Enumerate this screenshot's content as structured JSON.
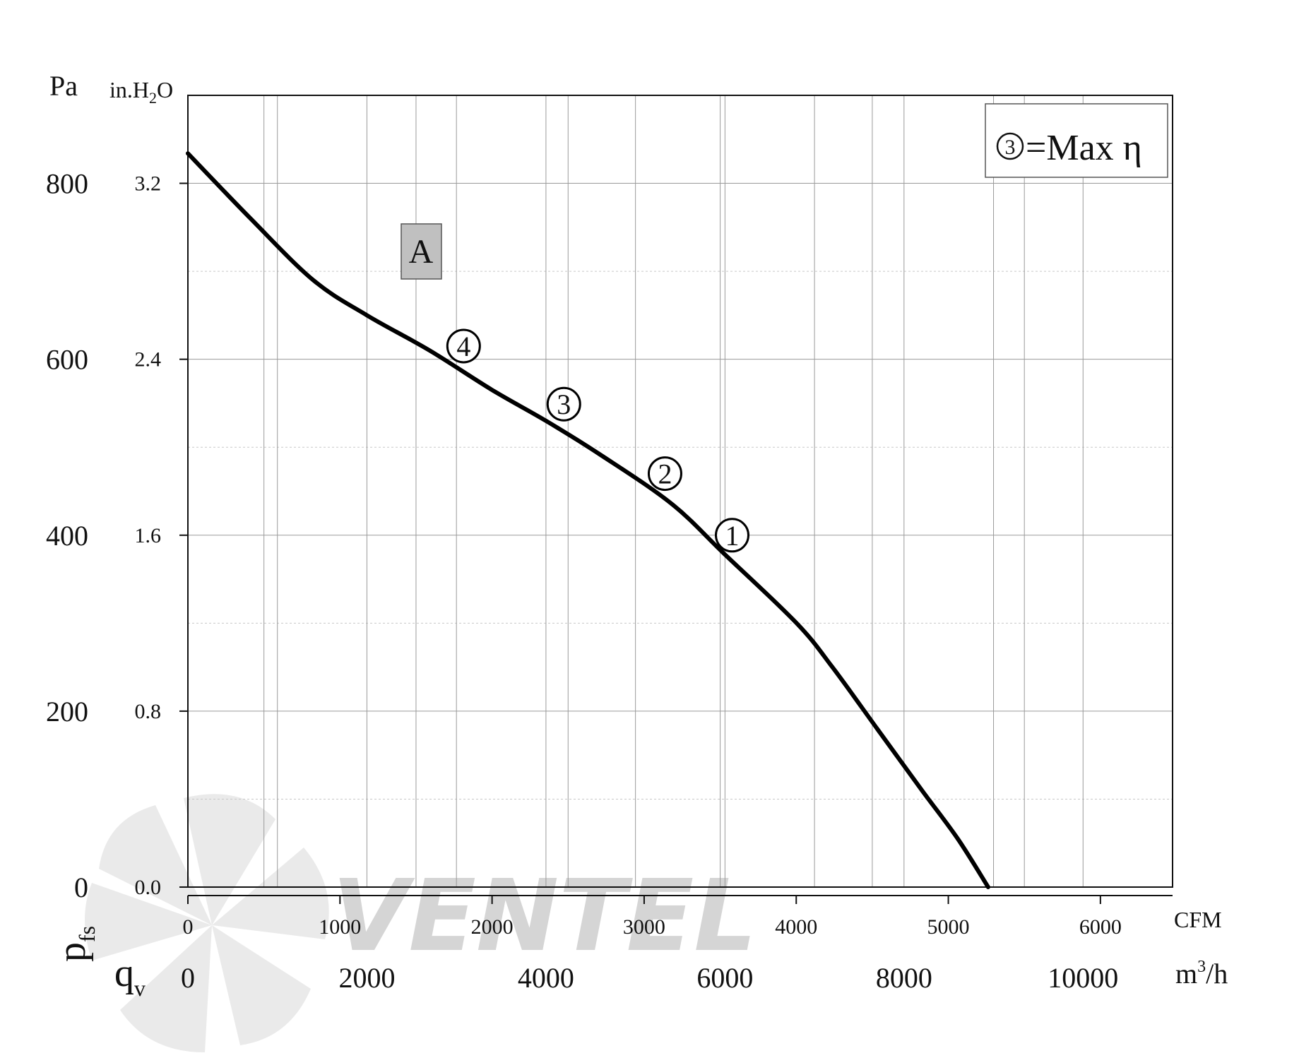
{
  "chart_data": {
    "type": "line",
    "y_units": {
      "left": "Pa",
      "right": "in.H2O"
    },
    "y_symbol": "p",
    "y_symbol_sub": "fs",
    "x_symbol": "q",
    "x_symbol_sub": "v",
    "x_units": {
      "primary": "m3/h",
      "secondary": "CFM"
    },
    "xlim": [
      0,
      11000
    ],
    "ylim": [
      0,
      900
    ],
    "x_ticks_m3h": [
      {
        "value": 0,
        "label": "0"
      },
      {
        "value": 2000,
        "label": "2000"
      },
      {
        "value": 4000,
        "label": "4000"
      },
      {
        "value": 6000,
        "label": "6000"
      },
      {
        "value": 8000,
        "label": "8000"
      },
      {
        "value": 10000,
        "label": "10000"
      }
    ],
    "x_ticks_cfm": [
      {
        "value": 0,
        "label": "0"
      },
      {
        "value": 1000,
        "label": "1000"
      },
      {
        "value": 2000,
        "label": "2000"
      },
      {
        "value": 3000,
        "label": "3000"
      },
      {
        "value": 4000,
        "label": "4000"
      },
      {
        "value": 5000,
        "label": "5000"
      },
      {
        "value": 6000,
        "label": "6000"
      }
    ],
    "y_ticks_pa": [
      {
        "value": 0,
        "label": "0"
      },
      {
        "value": 200,
        "label": "200"
      },
      {
        "value": 400,
        "label": "400"
      },
      {
        "value": 600,
        "label": "600"
      },
      {
        "value": 800,
        "label": "800"
      }
    ],
    "y_ticks_inh2o": [
      {
        "value": 0,
        "label": "0.0"
      },
      {
        "value": 0.8,
        "label": "0.8"
      },
      {
        "value": 1.6,
        "label": "1.6"
      },
      {
        "value": 2.4,
        "label": "2.4"
      },
      {
        "value": 3.2,
        "label": "3.2"
      }
    ],
    "series": [
      {
        "name": "A",
        "x": [
          0,
          700,
          1400,
          2000,
          2700,
          3400,
          4000,
          4600,
          5400,
          6000,
          6800,
          7200,
          7700,
          8200,
          8600,
          8940
        ],
        "y": [
          834,
          760,
          690,
          650,
          610,
          565,
          530,
          492,
          436,
          378,
          300,
          250,
          180,
          110,
          55,
          0
        ],
        "color": "#000000"
      }
    ],
    "operating_points": [
      {
        "label": "4",
        "x": 3080,
        "y": 615
      },
      {
        "label": "3",
        "x": 4200,
        "y": 549
      },
      {
        "label": "2",
        "x": 5330,
        "y": 470
      },
      {
        "label": "1",
        "x": 6080,
        "y": 400
      }
    ],
    "legend": {
      "marker": "3",
      "text": "=Max η",
      "position": "top-right"
    },
    "curve_label": "A",
    "grid": true
  },
  "watermark": "VENTEL"
}
